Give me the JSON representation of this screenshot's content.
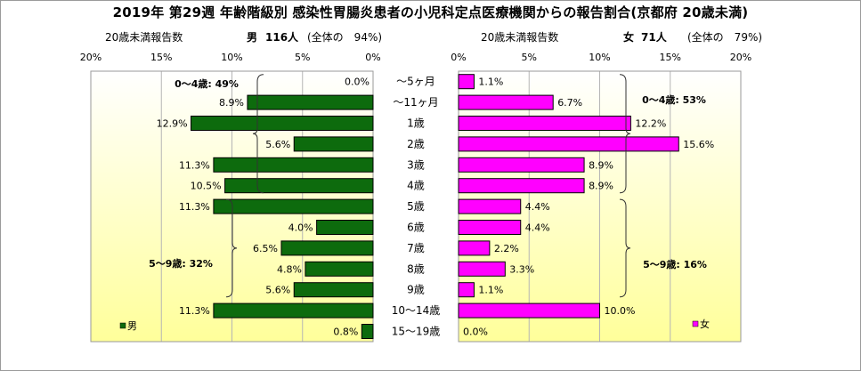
{
  "title": "2019年 第29週 年齢階級別 感染性胃腸炎患者の小児科定点医療機関からの報告割合(京都府 20歳未満)",
  "male_header": {
    "left": "20歳未満報告数",
    "sex": "男",
    "count": "116人",
    "share": "(全体の　94%)"
  },
  "female_header": {
    "left": "20歳未満報告数",
    "sex": "女",
    "count": "71人",
    "share": "(全体の　79%)"
  },
  "colors": {
    "male": "#0d6b0d",
    "female": "#ff00ff",
    "background_top": "#ffffff",
    "background_bottom": "#ffff9a"
  },
  "chart_data": {
    "type": "bar",
    "orientation": "horizontal",
    "categories": [
      "～5ヶ月",
      "～11ヶ月",
      "1歳",
      "2歳",
      "3歳",
      "4歳",
      "5歳",
      "6歳",
      "7歳",
      "8歳",
      "9歳",
      "10～14歳",
      "15～19歳"
    ],
    "series": [
      {
        "name": "男",
        "values": [
          0.0,
          8.9,
          12.9,
          5.6,
          11.3,
          10.5,
          11.3,
          4.0,
          6.5,
          4.8,
          5.6,
          11.3,
          0.8
        ],
        "labels": [
          "0.0%",
          "8.9%",
          "12.9%",
          "5.6%",
          "11.3%",
          "10.5%",
          "11.3%",
          "4.0%",
          "6.5%",
          "4.8%",
          "5.6%",
          "11.3%",
          "0.8%"
        ]
      },
      {
        "name": "女",
        "values": [
          1.1,
          6.7,
          12.2,
          15.6,
          8.9,
          8.9,
          4.4,
          4.4,
          2.2,
          3.3,
          1.1,
          10.0,
          0.0
        ],
        "labels": [
          "1.1%",
          "6.7%",
          "12.2%",
          "15.6%",
          "8.9%",
          "8.9%",
          "4.4%",
          "4.4%",
          "2.2%",
          "3.3%",
          "1.1%",
          "10.0%",
          "0.0%"
        ]
      }
    ],
    "xlim": [
      0,
      20
    ],
    "male_ticks": [
      "20%",
      "15%",
      "10%",
      "5%",
      "0%"
    ],
    "female_ticks": [
      "0%",
      "5%",
      "10%",
      "15%",
      "20%"
    ],
    "annotations": {
      "male_0_4": "0～4歳: 49%",
      "male_5_9": "5～9歳: 32%",
      "female_0_4": "0～4歳: 53%",
      "female_5_9": "5～9歳: 16%"
    },
    "legend": {
      "male": "男",
      "female": "女"
    },
    "grid": true
  }
}
